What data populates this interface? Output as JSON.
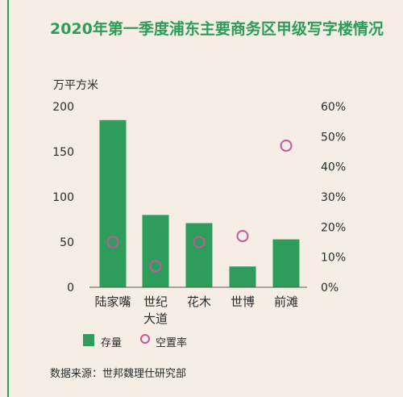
{
  "chart_data": {
    "type": "bar",
    "title": "2020年第一季度浦东主要商务区甲级写字楼情况",
    "ylabel": "万平方米",
    "categories": [
      [
        "陆家嘴"
      ],
      [
        "世纪",
        "大道"
      ],
      [
        "花木"
      ],
      [
        "世博"
      ],
      [
        "前滩"
      ]
    ],
    "ylim": [
      0,
      200
    ],
    "y_ticks": [
      "0",
      "50",
      "100",
      "150",
      "200"
    ],
    "y2lim": [
      0,
      60
    ],
    "y2_ticks": [
      "0%",
      "10%",
      "20%",
      "30%",
      "40%",
      "50%",
      "60%"
    ],
    "series": [
      {
        "name": "存量",
        "kind": "bar",
        "axis": "left",
        "color": "#2e9c5a",
        "values": [
          185,
          80,
          71,
          23,
          53
        ]
      },
      {
        "name": "空置率",
        "kind": "scatter",
        "axis": "right",
        "color": "#c7579b",
        "values": [
          15,
          7,
          15,
          17,
          47
        ]
      }
    ],
    "source": "数据来源：世邦魏理仕研究部"
  }
}
